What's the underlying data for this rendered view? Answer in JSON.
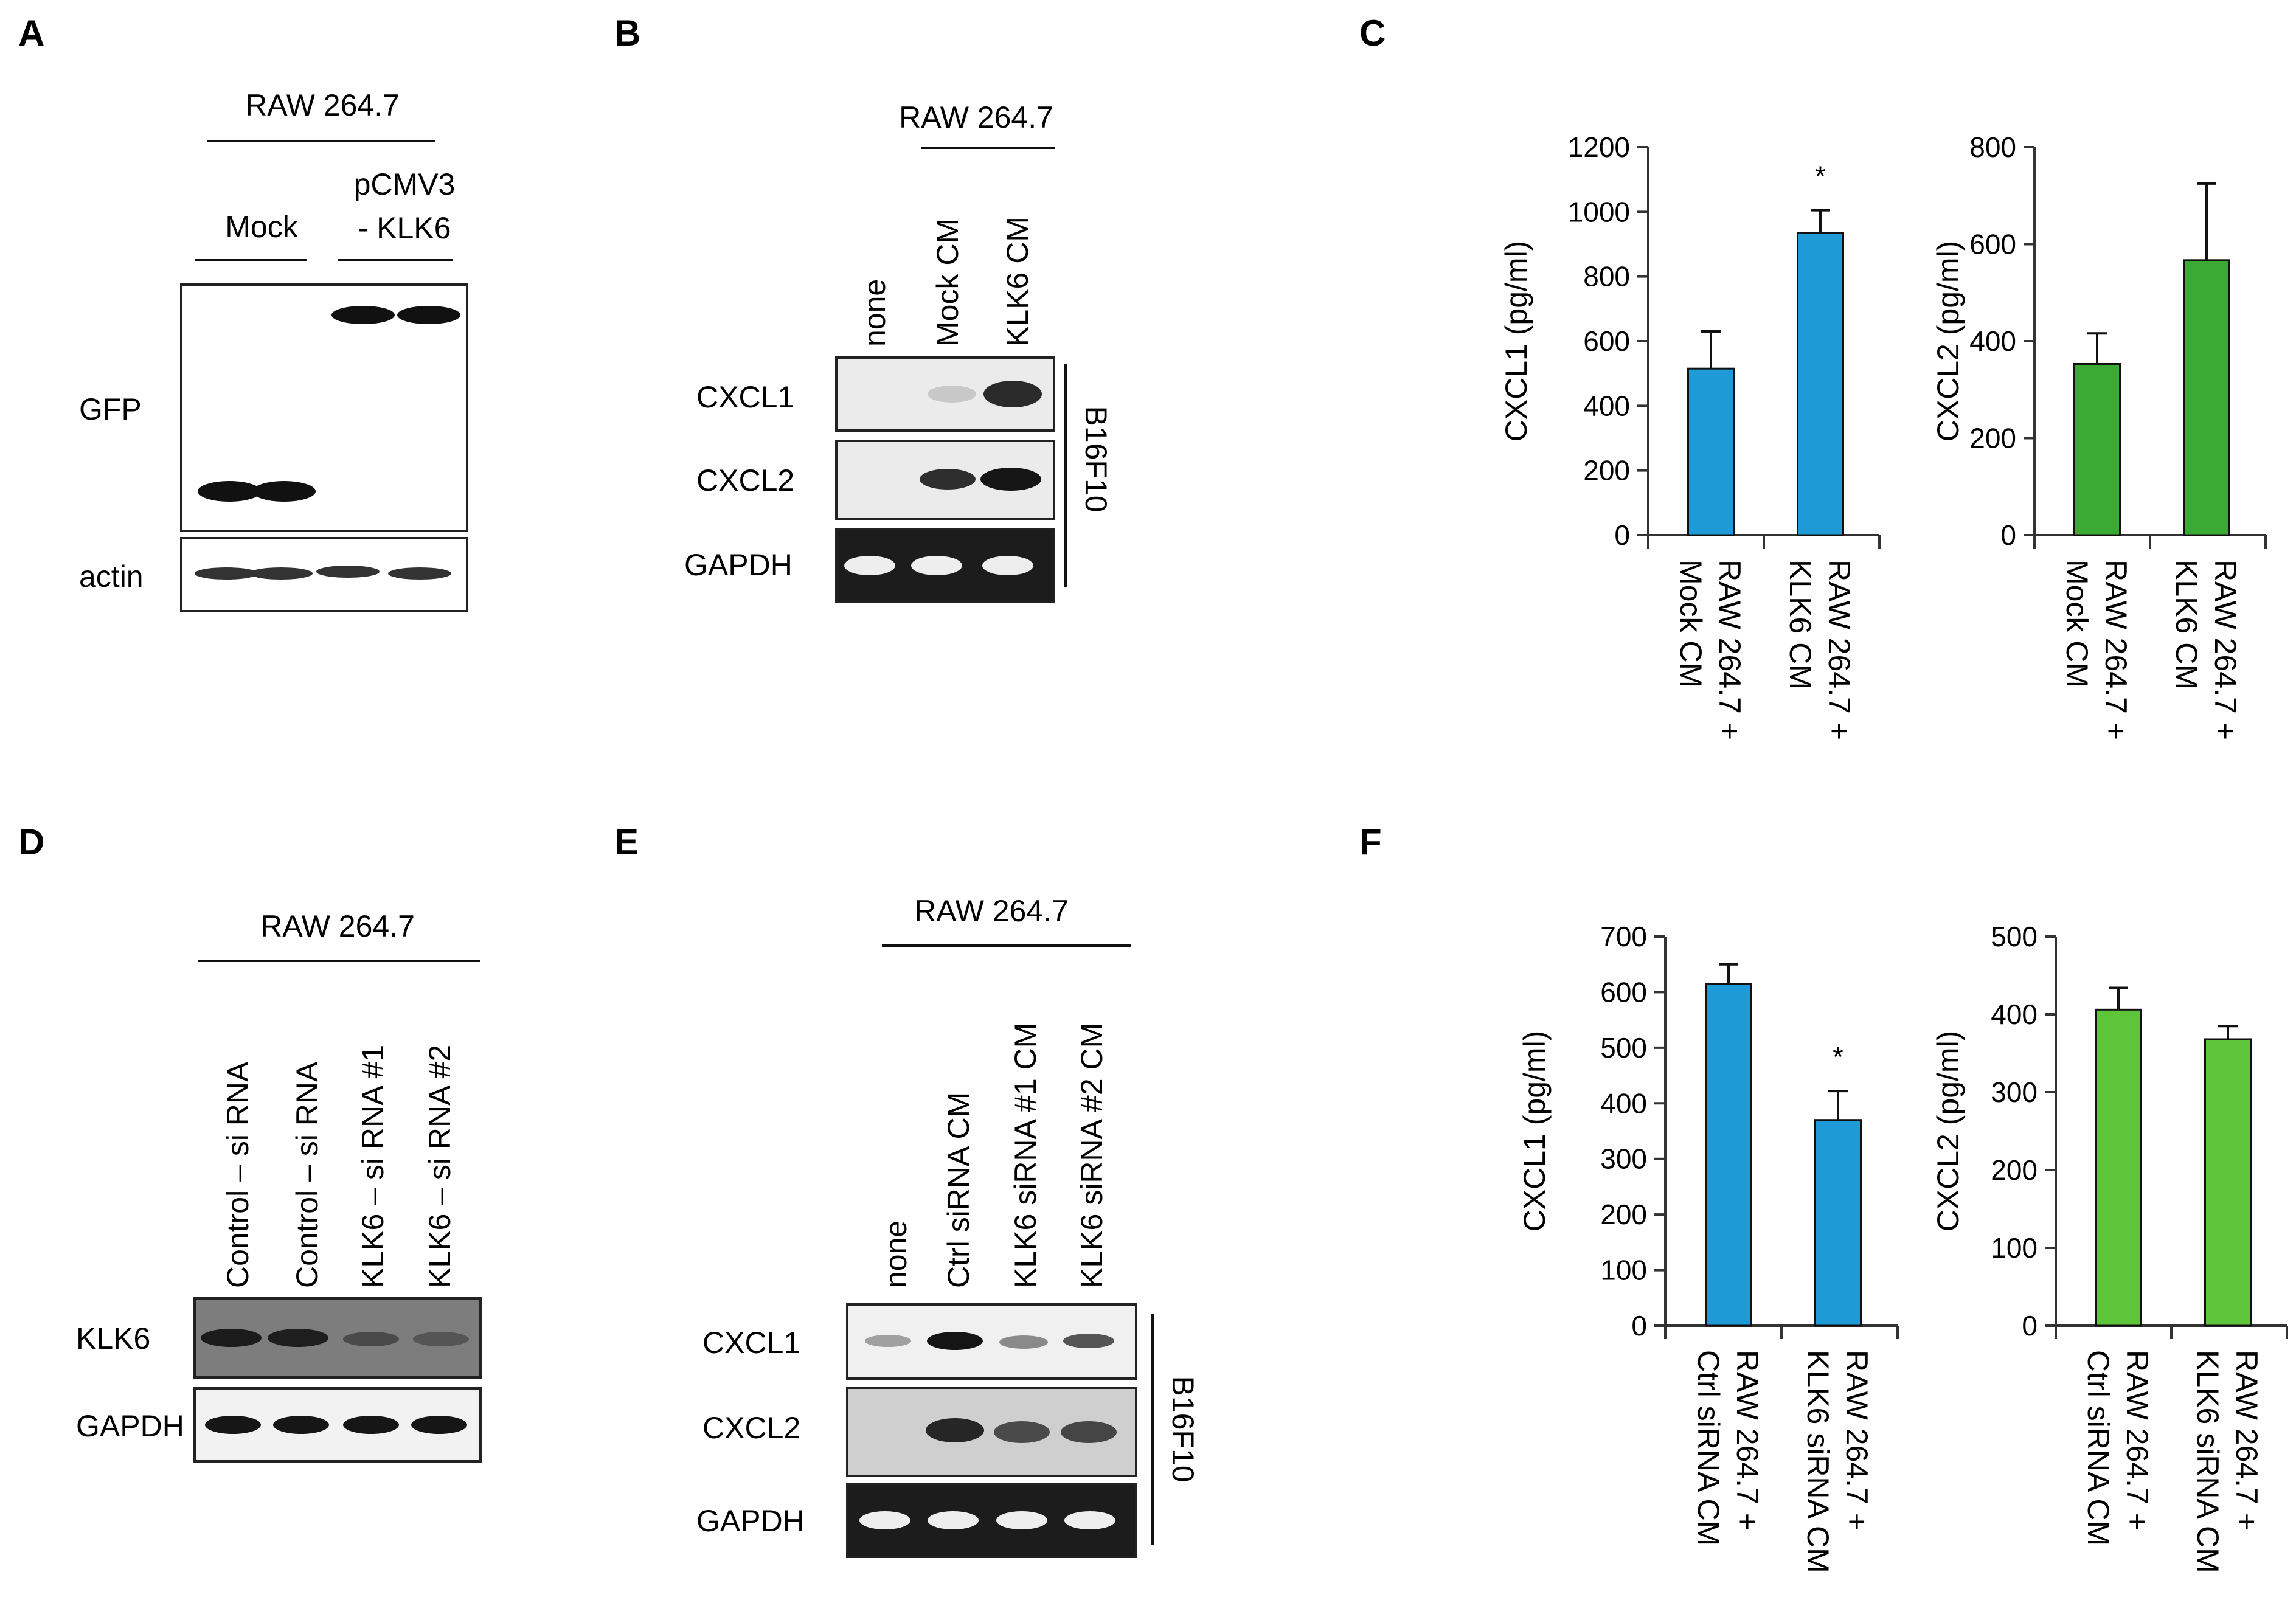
{
  "panels": {
    "A": {
      "letter": "A",
      "cell_line": "RAW 264.7",
      "groups": [
        "Mock",
        "pCMV3",
        "- KLK6"
      ],
      "rows": [
        "GFP",
        "actin"
      ]
    },
    "B": {
      "letter": "B",
      "cell_line": "RAW 264.7",
      "lanes": [
        "none",
        "Mock  CM",
        "KLK6  CM"
      ],
      "rows": [
        "CXCL1",
        "CXCL2",
        "GAPDH"
      ],
      "side_label": "B16F10"
    },
    "C": {
      "letter": "C"
    },
    "D": {
      "letter": "D",
      "cell_line": "RAW 264.7",
      "lanes": [
        "Control – si RNA",
        "Control – si RNA",
        "KLK6 – si RNA #1",
        "KLK6 – si RNA #2"
      ],
      "rows": [
        "KLK6",
        "GAPDH"
      ]
    },
    "E": {
      "letter": "E",
      "cell_line": "RAW 264.7",
      "lanes": [
        "none",
        "Ctrl siRNA CM",
        "KLK6  siRNA #1 CM",
        "KLK6  siRNA #2 CM"
      ],
      "rows": [
        "CXCL1",
        "CXCL2",
        "GAPDH"
      ],
      "side_label": "B16F10"
    },
    "F": {
      "letter": "F"
    }
  },
  "chart_data": [
    {
      "id": "C1",
      "type": "bar",
      "ylabel": "CXCL1 (pg/ml)",
      "ylim": [
        0,
        1200
      ],
      "yticks": [
        0,
        200,
        400,
        600,
        800,
        1000,
        1200
      ],
      "categories": [
        [
          "RAW 264.7 +",
          "Mock CM"
        ],
        [
          "RAW 264.7 +",
          "KLK6 CM"
        ]
      ],
      "values": [
        515,
        935
      ],
      "errors": [
        115,
        70
      ],
      "significance": [
        "",
        "*"
      ],
      "color": "#1e9ad6"
    },
    {
      "id": "C2",
      "type": "bar",
      "ylabel": "CXCL2 (pg/ml)",
      "ylim": [
        0,
        800
      ],
      "yticks": [
        0,
        200,
        400,
        600,
        800
      ],
      "categories": [
        [
          "RAW 264.7 +",
          "Mock CM"
        ],
        [
          "RAW 264.7 +",
          "KLK6 CM"
        ]
      ],
      "values": [
        353,
        567
      ],
      "errors": [
        63,
        158
      ],
      "significance": [
        "",
        ""
      ],
      "color": "#3aaa35"
    },
    {
      "id": "F1",
      "type": "bar",
      "ylabel": "CXCL1 (pg/ml)",
      "ylim": [
        0,
        700
      ],
      "yticks": [
        0,
        100,
        200,
        300,
        400,
        500,
        600,
        700
      ],
      "categories": [
        [
          "RAW 264.7 +",
          "Ctrl siRNA CM"
        ],
        [
          "RAW 264.7 +",
          "KLK6 siRNA CM"
        ]
      ],
      "values": [
        615,
        370
      ],
      "errors": [
        35,
        52
      ],
      "significance": [
        "",
        "*"
      ],
      "color": "#1e9ad6"
    },
    {
      "id": "F2",
      "type": "bar",
      "ylabel": "CXCL2 (pg/ml)",
      "ylim": [
        0,
        500
      ],
      "yticks": [
        0,
        100,
        200,
        300,
        400,
        500
      ],
      "categories": [
        [
          "RAW 264.7 +",
          "Ctrl siRNA CM"
        ],
        [
          "RAW 264.7 +",
          "KLK6 siRNA CM"
        ]
      ],
      "values": [
        406,
        368
      ],
      "errors": [
        28,
        17
      ],
      "significance": [
        "",
        ""
      ],
      "color": "#5ec53b"
    }
  ]
}
